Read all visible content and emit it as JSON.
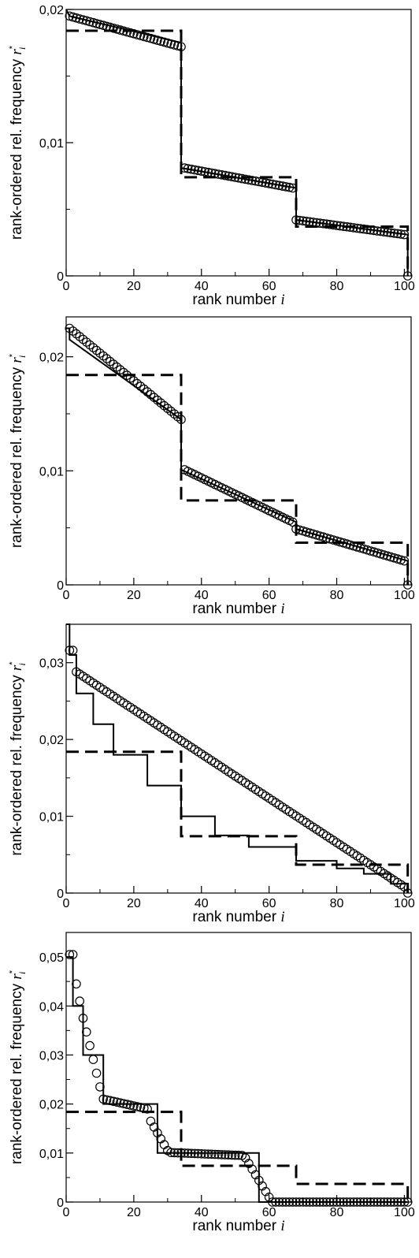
{
  "figure": {
    "panels": [
      {
        "name": "panel-1"
      },
      {
        "name": "panel-2"
      },
      {
        "name": "panel-3"
      },
      {
        "name": "panel-4"
      }
    ]
  },
  "chart_data": [
    {
      "type": "scatter",
      "xlabel": "rank number",
      "xlabel_var": "i",
      "ylabel": "rank-ordered rel. frequency",
      "ylabel_var": "r",
      "ylabel_sup": "*",
      "ylabel_sub": "i",
      "xlim": [
        0,
        102
      ],
      "ylim": [
        0,
        0.02
      ],
      "xticks": [
        0,
        20,
        40,
        60,
        80,
        100
      ],
      "xtick_labels": [
        "0",
        "20",
        "40",
        "60",
        "80",
        "100"
      ],
      "yticks": [
        0,
        0.01,
        0.02
      ],
      "ytick_labels": [
        "0",
        "0,01",
        "0,02"
      ],
      "y_minor": 0.005,
      "reference_step": {
        "style": "dashed",
        "x": [
          0,
          34,
          34,
          68,
          68,
          101,
          101
        ],
        "y": [
          0.0184,
          0.0184,
          0.0074,
          0.0074,
          0.0037,
          0.0037,
          0
        ]
      },
      "step": {
        "style": "solid",
        "x": [
          0,
          1,
          1,
          34,
          34,
          68,
          68,
          101,
          101
        ],
        "y": [
          0.02,
          0.0195,
          0.0195,
          0.0175,
          0.0081,
          0.0066,
          0.0042,
          0.0031,
          0
        ]
      },
      "points": [
        {
          "from": 1,
          "to": 34,
          "start": 0.0195,
          "end": 0.0172
        },
        {
          "from": 35,
          "to": 67,
          "start": 0.0081,
          "end": 0.0066
        },
        {
          "from": 68,
          "to": 100,
          "start": 0.0042,
          "end": 0.0031
        },
        {
          "from": 101,
          "to": 101,
          "start": 0,
          "end": 0
        }
      ]
    },
    {
      "type": "scatter",
      "xlabel": "rank number",
      "xlabel_var": "i",
      "ylabel": "rank-ordered rel. frequency",
      "ylabel_var": "r",
      "ylabel_sup": "*",
      "ylabel_sub": "i",
      "xlim": [
        0,
        102
      ],
      "ylim": [
        0,
        0.0235
      ],
      "xticks": [
        0,
        20,
        40,
        60,
        80,
        100
      ],
      "xtick_labels": [
        "0",
        "20",
        "40",
        "60",
        "80",
        "100"
      ],
      "yticks": [
        0,
        0.01,
        0.02
      ],
      "ytick_labels": [
        "0",
        "0,01",
        "0,02"
      ],
      "y_minor": 0.005,
      "reference_step": {
        "style": "dashed",
        "x": [
          0,
          34,
          34,
          68,
          68,
          101,
          101
        ],
        "y": [
          0.0184,
          0.0184,
          0.0074,
          0.0074,
          0.0037,
          0.0037,
          0
        ]
      },
      "step": {
        "style": "solid",
        "x": [
          0,
          1,
          1,
          34,
          34,
          68,
          68,
          101,
          101
        ],
        "y": [
          0.0225,
          0.0225,
          0.0215,
          0.0145,
          0.0101,
          0.0055,
          0.0049,
          0.0021,
          0
        ]
      },
      "points": [
        {
          "from": 1,
          "to": 34,
          "start": 0.0225,
          "end": 0.0145
        },
        {
          "from": 35,
          "to": 67,
          "start": 0.0101,
          "end": 0.0055
        },
        {
          "from": 68,
          "to": 100,
          "start": 0.0049,
          "end": 0.0021
        },
        {
          "from": 101,
          "to": 101,
          "start": 0,
          "end": 0
        }
      ]
    },
    {
      "type": "scatter",
      "xlabel": "rank number",
      "xlabel_var": "i",
      "ylabel": "rank-ordered rel. frequency",
      "ylabel_var": "r",
      "ylabel_sup": "*",
      "ylabel_sub": "i",
      "xlim": [
        0,
        102
      ],
      "ylim": [
        0,
        0.035
      ],
      "xticks": [
        0,
        20,
        40,
        60,
        80,
        100
      ],
      "xtick_labels": [
        "0",
        "20",
        "40",
        "60",
        "80",
        "100"
      ],
      "yticks": [
        0,
        0.01,
        0.02,
        0.03
      ],
      "ytick_labels": [
        "0",
        "0,01",
        "0,02",
        "0,03"
      ],
      "y_minor": 0.005,
      "reference_step": {
        "style": "dashed",
        "x": [
          0,
          34,
          34,
          68,
          68,
          101,
          101
        ],
        "y": [
          0.0184,
          0.0184,
          0.0074,
          0.0074,
          0.0037,
          0.0037,
          0
        ]
      },
      "step": {
        "style": "solid",
        "x": [
          0,
          1,
          1,
          3,
          3,
          8,
          8,
          14,
          14,
          24,
          24,
          34,
          34,
          44,
          44,
          54,
          54,
          68,
          68,
          80,
          80,
          88,
          88,
          96,
          96,
          101,
          101
        ],
        "y": [
          0.035,
          0.035,
          0.031,
          0.031,
          0.026,
          0.026,
          0.022,
          0.022,
          0.018,
          0.018,
          0.014,
          0.014,
          0.01,
          0.01,
          0.0075,
          0.0075,
          0.006,
          0.006,
          0.0042,
          0.0042,
          0.0032,
          0.0032,
          0.0025,
          0.0025,
          0.0012,
          0.0012,
          0
        ]
      },
      "points": [
        {
          "from": 1,
          "to": 1,
          "start": 0.0316,
          "end": 0.0316
        },
        {
          "from": 2,
          "to": 2,
          "start": 0.0316,
          "end": 0.0316
        },
        {
          "from": 3,
          "to": 100,
          "start": 0.0288,
          "end": 0.0008
        },
        {
          "from": 101,
          "to": 101,
          "start": 0,
          "end": 0
        }
      ]
    },
    {
      "type": "scatter",
      "xlabel": "rank number",
      "xlabel_var": "i",
      "ylabel": "rank-ordered rel. frequency",
      "ylabel_var": "r",
      "ylabel_sup": "*",
      "ylabel_sub": "i",
      "xlim": [
        0,
        102
      ],
      "ylim": [
        0,
        0.055
      ],
      "xticks": [
        0,
        20,
        40,
        60,
        80,
        100
      ],
      "xtick_labels": [
        "0",
        "20",
        "40",
        "60",
        "80",
        "100"
      ],
      "yticks": [
        0,
        0.01,
        0.02,
        0.03,
        0.04,
        0.05
      ],
      "ytick_labels": [
        "0",
        "0,01",
        "0,02",
        "0,03",
        "0,04",
        "0,05"
      ],
      "y_minor": 0.005,
      "reference_step": {
        "style": "dashed",
        "x": [
          0,
          34,
          34,
          68,
          68,
          101,
          101
        ],
        "y": [
          0.0184,
          0.0184,
          0.0074,
          0.0074,
          0.0037,
          0.0037,
          0
        ]
      },
      "step": {
        "style": "solid",
        "x": [
          0,
          2,
          2,
          5,
          5,
          11,
          11,
          27,
          27,
          57,
          57,
          101,
          101
        ],
        "y": [
          0.05,
          0.05,
          0.04,
          0.04,
          0.03,
          0.03,
          0.02,
          0.02,
          0.01,
          0.01,
          0,
          0,
          0
        ]
      },
      "points": [
        {
          "from": 1,
          "to": 2,
          "start": 0.0505,
          "end": 0.0505
        },
        {
          "from": 3,
          "to": 4,
          "start": 0.0445,
          "end": 0.041
        },
        {
          "from": 5,
          "to": 10,
          "start": 0.0375,
          "end": 0.0235
        },
        {
          "from": 11,
          "to": 24,
          "start": 0.021,
          "end": 0.019
        },
        {
          "from": 25,
          "to": 30,
          "start": 0.0165,
          "end": 0.0105
        },
        {
          "from": 31,
          "to": 52,
          "start": 0.0101,
          "end": 0.0095
        },
        {
          "from": 53,
          "to": 60,
          "start": 0.009,
          "end": 0.001
        },
        {
          "from": 61,
          "to": 101,
          "start": 0,
          "end": 0
        }
      ]
    }
  ]
}
